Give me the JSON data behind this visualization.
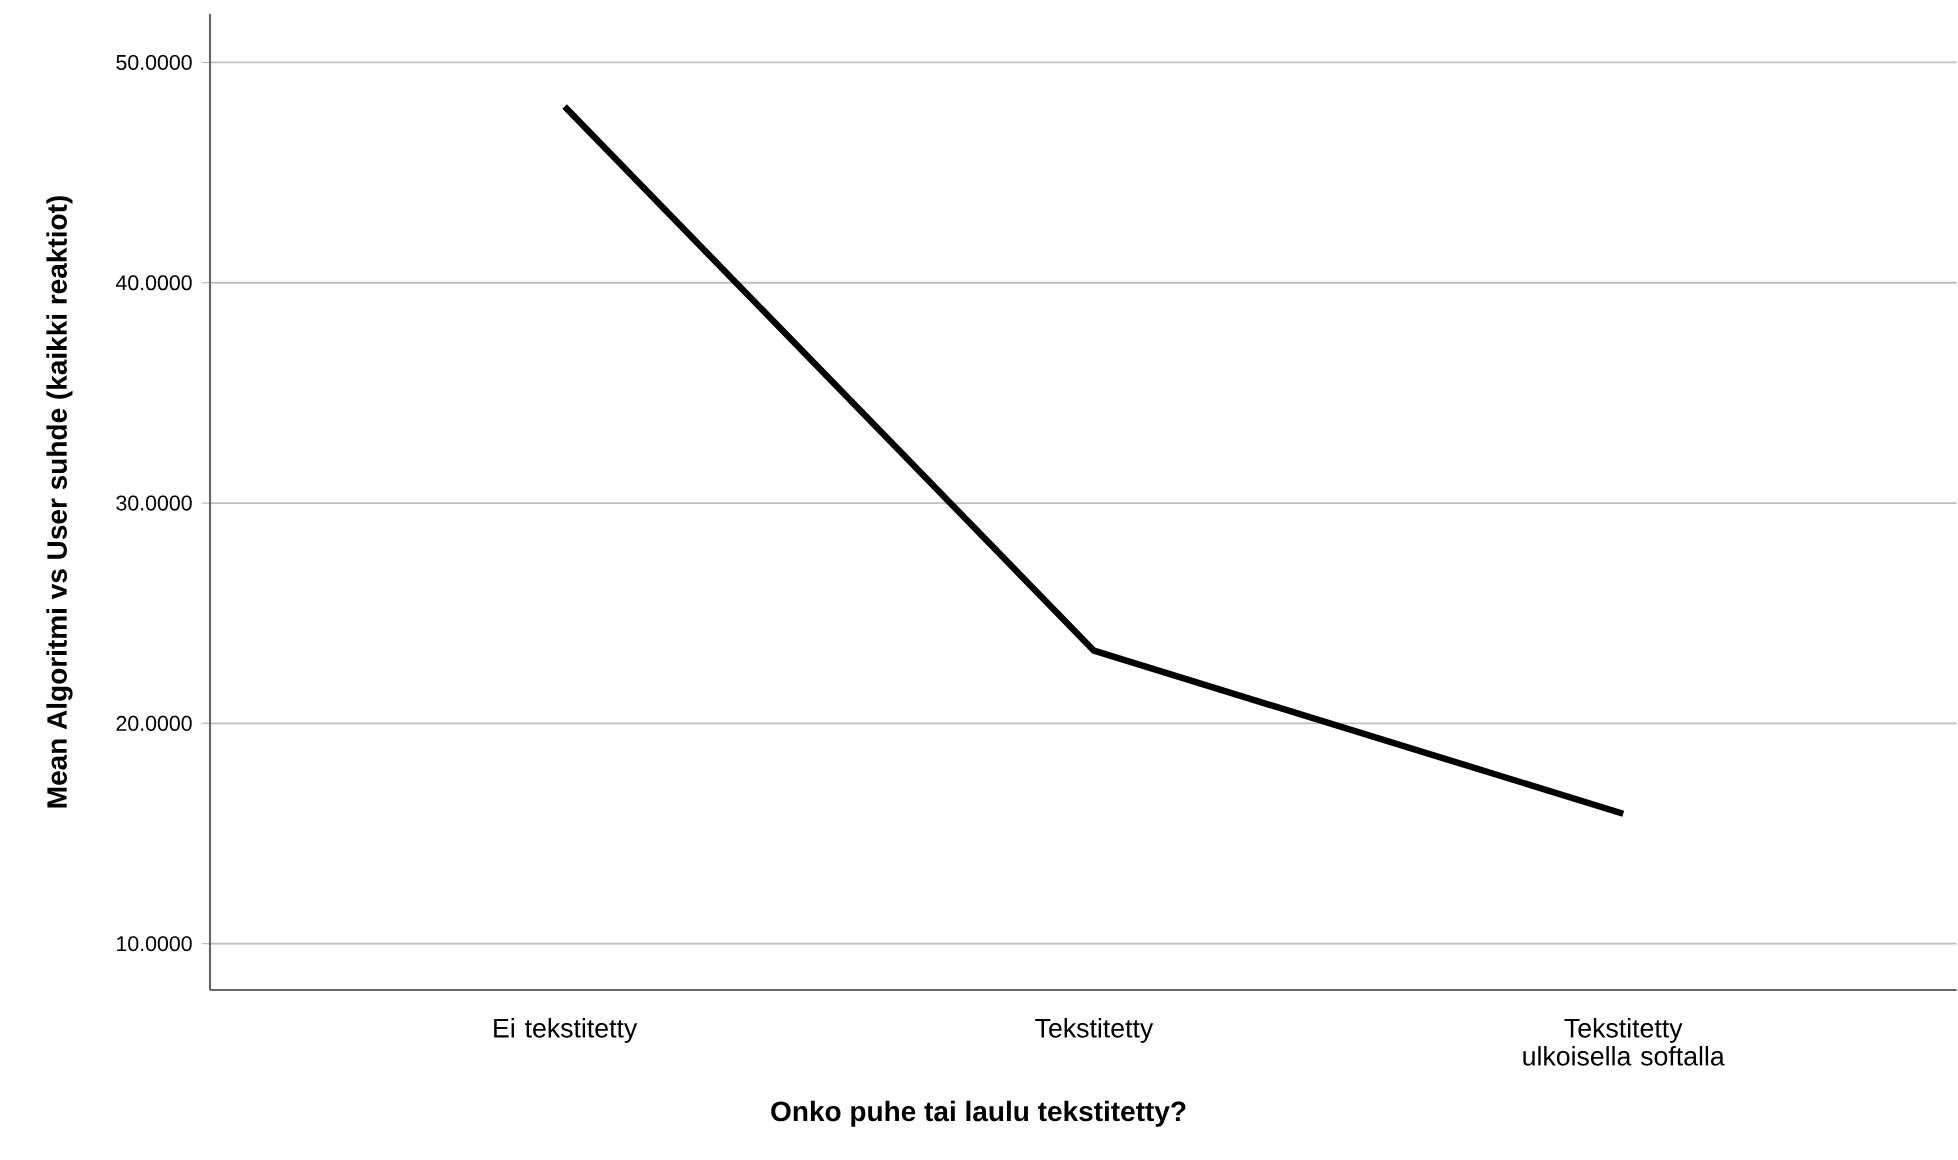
{
  "chart_data": {
    "type": "line",
    "categories": [
      "Ei tekstitetty",
      "Tekstitetty",
      "Tekstitetty ulkoisella softalla"
    ],
    "series": [
      {
        "color": "#000000",
        "values": [
          48.0,
          23.3,
          15.9
        ]
      }
    ],
    "xlabel": "Onko puhe tai laulu tekstitetty?",
    "ylabel": "Mean Algoritmi vs User suhde (kaikki reaktiot)",
    "ylim": [
      7.9,
      52.2
    ],
    "yticks": [
      {
        "value": 10,
        "label": "10.0000"
      },
      {
        "value": 20,
        "label": "20.0000"
      },
      {
        "value": 30,
        "label": "30.0000"
      },
      {
        "value": 40,
        "label": "40.0000"
      },
      {
        "value": 50,
        "label": "50.0000"
      }
    ],
    "grid": "y",
    "marker": "none",
    "line_style": "solid"
  }
}
